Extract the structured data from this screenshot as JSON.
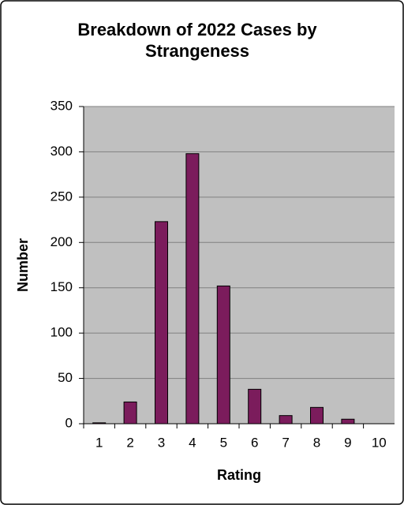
{
  "chart_data": {
    "type": "bar",
    "title": "Breakdown of 2022 Cases by Strangeness",
    "x_label": "Rating",
    "y_label": "Number",
    "categories": [
      "1",
      "2",
      "3",
      "4",
      "5",
      "6",
      "7",
      "8",
      "9",
      "10"
    ],
    "values": [
      1,
      24,
      223,
      298,
      152,
      38,
      9,
      18,
      5,
      0
    ],
    "color": "#7b1c5c",
    "ylim": [
      0,
      350
    ],
    "yticks": [
      0,
      50,
      100,
      150,
      200,
      250,
      300,
      350
    ],
    "grid": true
  }
}
